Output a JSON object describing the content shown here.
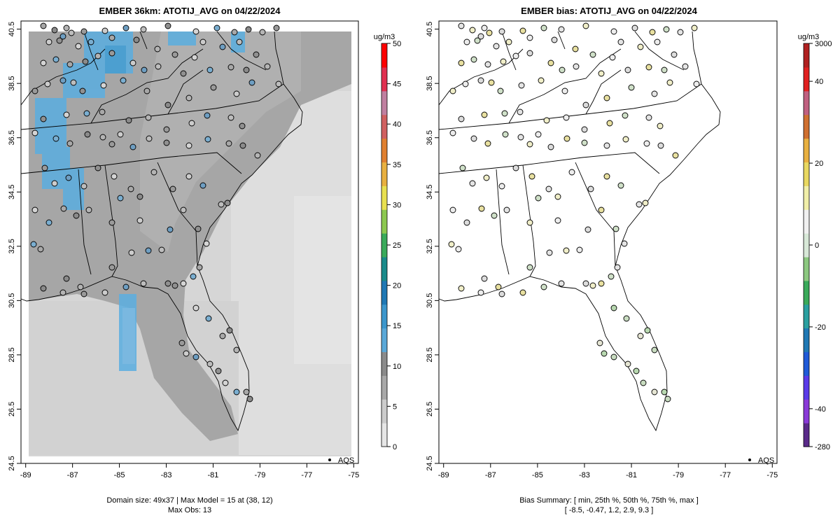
{
  "chart_data": [
    {
      "type": "heatmap",
      "title": "EMBER 36km: ATOTIJ_AVG on 04/22/2024",
      "x_ticks": [
        "-89",
        "-87",
        "-85",
        "-83",
        "-81",
        "-79",
        "-77",
        "-75"
      ],
      "y_ticks": [
        "24.5",
        "26.5",
        "28.5",
        "30.5",
        "32.5",
        "34.5",
        "36.5",
        "38.5",
        "40.5"
      ],
      "xlim": [
        -89.2,
        -74.8
      ],
      "ylim": [
        24.5,
        40.8
      ],
      "colorbar": {
        "unit": "ug/m3",
        "range": [
          0,
          50
        ],
        "ticks": [
          "0",
          "5",
          "10",
          "15",
          "20",
          "25",
          "30",
          "35",
          "40",
          "45",
          "50"
        ],
        "colors": [
          "#e6e6e6",
          "#cccccc",
          "#a8a8a8",
          "#8a8a8a",
          "#5aa8d8",
          "#3c96cc",
          "#1f78b4",
          "#1a8a8a",
          "#3aaa5a",
          "#8cc850",
          "#e8e050",
          "#e8b040",
          "#e08030",
          "#d06060",
          "#c080a0",
          "#e03050",
          "#ff0000"
        ]
      },
      "legend": "AQS",
      "footer": [
        "Domain size: 49x37 | Max Model = 15 at (38, 12)",
        "Max Obs: 13"
      ],
      "summary": {
        "domain_size": "49x37",
        "max_model": 15,
        "max_model_cell": [
          38,
          12
        ],
        "max_obs": 13
      }
    },
    {
      "type": "scatter",
      "title": "EMBER bias: ATOTIJ_AVG on 04/22/2024",
      "x_ticks": [
        "-89",
        "-87",
        "-85",
        "-83",
        "-81",
        "-79",
        "-77",
        "-75"
      ],
      "y_ticks": [
        "24.5",
        "26.5",
        "28.5",
        "30.5",
        "32.5",
        "34.5",
        "36.5",
        "38.5",
        "40.5"
      ],
      "xlim": [
        -89.2,
        -74.8
      ],
      "ylim": [
        24.5,
        40.8
      ],
      "colorbar": {
        "unit": "ug/m3",
        "ticks": [
          "-280",
          "-40",
          "-20",
          "0",
          "20",
          "40",
          "3000"
        ],
        "colors": [
          "#5a2a8a",
          "#8a3ad8",
          "#5a3ae8",
          "#1f5ad8",
          "#1f78b4",
          "#2aa0a0",
          "#3aaa5a",
          "#8cc880",
          "#d8e8d8",
          "#f0f0f0",
          "#f0eea8",
          "#e8d860",
          "#e8b040",
          "#d07030",
          "#c06080",
          "#e02020",
          "#b02020"
        ]
      },
      "legend": "AQS",
      "footer": [
        "Bias Summary: [ min, 25th %, 50th %, 75th %, max ]",
        "[ -8.5,   -0.47,   1.2,   2.9,   9.3 ]"
      ],
      "bias_summary": {
        "min": -8.5,
        "p25": -0.47,
        "p50": 1.2,
        "p75": 2.9,
        "max": 9.3
      }
    }
  ]
}
